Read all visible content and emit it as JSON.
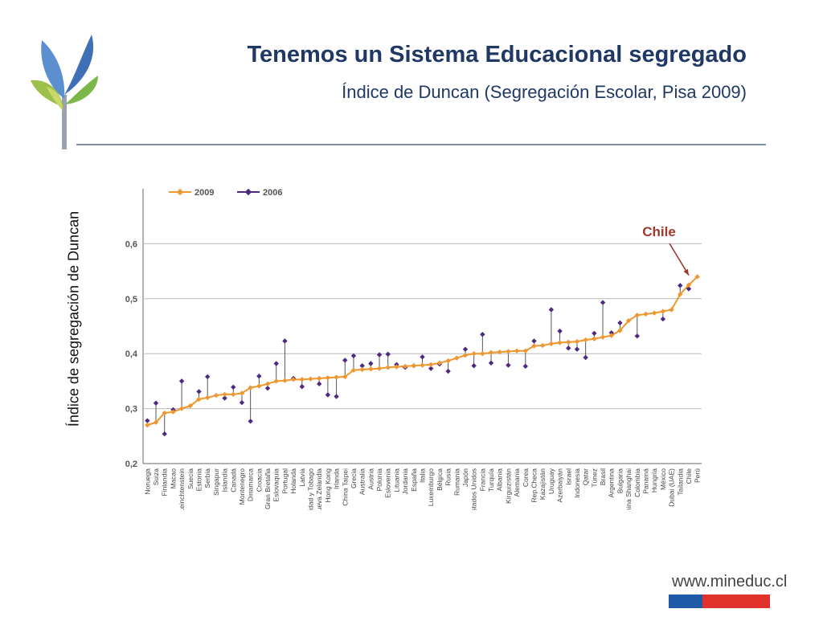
{
  "header": {
    "title": "Tenemos un Sistema Educacional segregado",
    "subtitle": "Índice de Duncan (Segregación Escolar, Pisa 2009)"
  },
  "footer": {
    "website": "www.mineduc.cl"
  },
  "colors": {
    "title": "#1f3864",
    "series_2009": "#f0962e",
    "series_2006": "#4b2a80",
    "annotation": "#a0392b"
  },
  "chart_data": {
    "type": "line",
    "ylabel": "Índice de segregación de Duncan",
    "ylim": [
      0.2,
      0.7
    ],
    "yticks": [
      "0,2",
      "0,3",
      "0,4",
      "0,5",
      "0,6"
    ],
    "grid": true,
    "legend_position": "top-left",
    "annotation": {
      "text": "Chile",
      "target": "Chile"
    },
    "categories": [
      "Noruega",
      "Suiza",
      "Finlandia",
      "Macao",
      "Leinchtenstein",
      "Suecia",
      "Estonia",
      "Serbia",
      "Singapur",
      "Islandia",
      "Canadá",
      "Montenegro",
      "Dinamarca",
      "Croacia",
      "Gran Bretaña",
      "Eslovaquia",
      "Portugal",
      "Holanda",
      "Latvia",
      "Trinidad y Tobago",
      "Nueva Zelandia",
      "Hong Kong",
      "Irlanda",
      "China Taipei",
      "Grecia",
      "Australia",
      "Austria",
      "Polonia",
      "Eslovenia",
      "Lituania",
      "Jordania",
      "España",
      "Italia",
      "Luxemburgo",
      "Bélgica",
      "Rusia",
      "Rumania",
      "Japón",
      "Estados Unidos",
      "Francia",
      "Turquía",
      "Albania",
      "Kirguizistán",
      "Alemania",
      "Corea",
      "Rep.Checa",
      "Kazajistán",
      "Uruguay",
      "Azerbaiyán",
      "Israel",
      "Indonesia",
      "Qatar",
      "Túnez",
      "Brasil",
      "Argentina",
      "Bulgaria",
      "China Shanghai",
      "Colombia",
      "Panamá",
      "Hungría",
      "México",
      "Dubai (UAE)",
      "Tailandia",
      "Chile",
      "Perú"
    ],
    "series": [
      {
        "name": "2009",
        "values": [
          0.27,
          0.275,
          0.292,
          0.294,
          0.3,
          0.305,
          0.317,
          0.32,
          0.324,
          0.326,
          0.326,
          0.328,
          0.338,
          0.341,
          0.345,
          0.35,
          0.351,
          0.353,
          0.353,
          0.354,
          0.355,
          0.356,
          0.357,
          0.358,
          0.37,
          0.371,
          0.372,
          0.373,
          0.375,
          0.376,
          0.377,
          0.378,
          0.379,
          0.38,
          0.383,
          0.387,
          0.392,
          0.397,
          0.4,
          0.4,
          0.402,
          0.403,
          0.404,
          0.405,
          0.405,
          0.414,
          0.415,
          0.418,
          0.42,
          0.421,
          0.422,
          0.425,
          0.427,
          0.43,
          0.433,
          0.442,
          0.46,
          0.47,
          0.472,
          0.474,
          0.477,
          0.48,
          0.508,
          0.525,
          0.54
        ]
      },
      {
        "name": "2006",
        "values": [
          0.278,
          0.31,
          0.254,
          0.298,
          0.35,
          null,
          0.331,
          0.358,
          null,
          0.319,
          0.339,
          0.311,
          0.277,
          0.359,
          0.337,
          0.382,
          0.423,
          0.355,
          0.34,
          null,
          0.345,
          0.325,
          0.322,
          0.388,
          0.396,
          0.378,
          0.382,
          0.398,
          0.399,
          0.38,
          0.375,
          0.378,
          0.394,
          0.373,
          0.381,
          0.368,
          null,
          0.408,
          0.378,
          0.435,
          0.383,
          null,
          0.379,
          null,
          0.377,
          0.423,
          null,
          0.48,
          0.441,
          0.41,
          0.408,
          0.393,
          0.437,
          0.493,
          0.438,
          0.456,
          null,
          0.432,
          null,
          null,
          0.463,
          null,
          0.524,
          0.518,
          null
        ]
      }
    ]
  }
}
